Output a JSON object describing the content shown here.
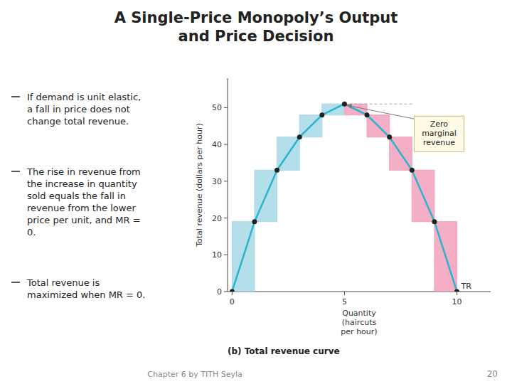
{
  "chart_data": {
    "type": "line",
    "title": "A Single-Price Monopoly’s Output\nand Price Decision",
    "subtitle": "(b)  Total revenue curve",
    "bullet_points": [
      "If demand is unit elastic,\na fall in price does not\nchange total revenue.",
      "The rise in revenue from\nthe increase in quantity\nsold equals the fall in\nrevenue from the lower\nprice per unit, and MR =\n0.",
      "Total revenue is\nmaximized when MR = 0."
    ],
    "x": [
      0,
      1,
      2,
      3,
      4,
      5,
      6,
      7,
      8,
      9,
      10
    ],
    "series": [
      {
        "name": "TR",
        "color": "#29B5CC",
        "marker": "circle",
        "values": [
          0,
          19,
          33,
          42,
          48,
          51,
          48,
          42,
          33,
          19,
          0
        ]
      }
    ],
    "colors": [
      "#A8D8E8",
      "#A8D8E8",
      "#A8D8E8",
      "#A8D8E8",
      "#A8D8E8",
      "#F2A0BC",
      "#F2A0BC",
      "#F2A0BC",
      "#F2A0BC",
      "#F2A0BC"
    ],
    "annotations": [
      {
        "text": "Zero\nmarginal\nrevenue",
        "x": 5,
        "y": 51
      }
    ],
    "xlabel": "Quantity\n(haircuts\nper hour)",
    "ylabel": "Total revenue (dollars per hour)",
    "xlim": [
      -0.2,
      11.5
    ],
    "ylim": [
      0,
      58
    ],
    "xticks": [
      0,
      5,
      10
    ],
    "yticks": [
      0,
      10,
      20,
      30,
      40,
      50
    ],
    "grid": false,
    "footer": "Chapter 6 by TITH Seyla",
    "page_number": "20"
  }
}
